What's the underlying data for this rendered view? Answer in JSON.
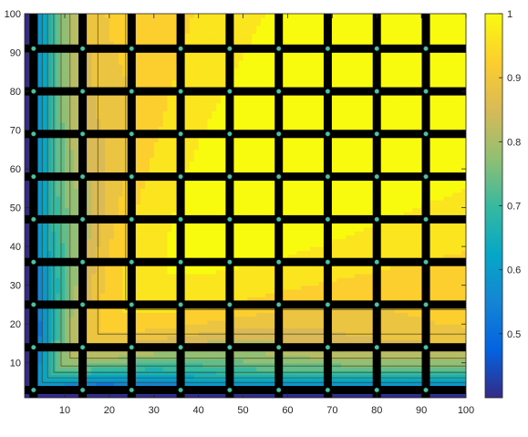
{
  "chart_data": {
    "type": "heatmap",
    "title": "",
    "xlabel": "",
    "ylabel": "",
    "xlim": [
      1,
      100
    ],
    "ylim": [
      1,
      100
    ],
    "x_ticks": [
      "10",
      "20",
      "30",
      "40",
      "50",
      "60",
      "70",
      "80",
      "90",
      "100"
    ],
    "y_ticks": [
      "10",
      "20",
      "30",
      "40",
      "50",
      "60",
      "70",
      "80",
      "90",
      "100"
    ],
    "colorbar": {
      "colormap": "parula",
      "range": [
        0.4,
        1.0
      ],
      "ticks": [
        "0.5",
        "0.6",
        "0.7",
        "0.8",
        "0.9",
        "1"
      ]
    },
    "grid_lines_x": [
      3,
      14,
      25,
      36,
      47,
      58,
      69,
      80,
      91
    ],
    "grid_lines_y": [
      3,
      14,
      25,
      36,
      47,
      58,
      69,
      80,
      91
    ],
    "contour_levels": [
      0.45,
      0.5,
      0.55,
      0.6,
      0.65,
      0.7,
      0.75,
      0.8,
      0.85,
      0.9,
      0.95
    ],
    "colors": {
      "parula": [
        "#352a87",
        "#0363e1",
        "#1485d4",
        "#06a7c6",
        "#38b99e",
        "#92bf73",
        "#d9ba56",
        "#fcce2e",
        "#f9fb0e"
      ],
      "grid": "#000000",
      "contour_line": "#3a3a1a",
      "node": "#49c6a6"
    }
  }
}
